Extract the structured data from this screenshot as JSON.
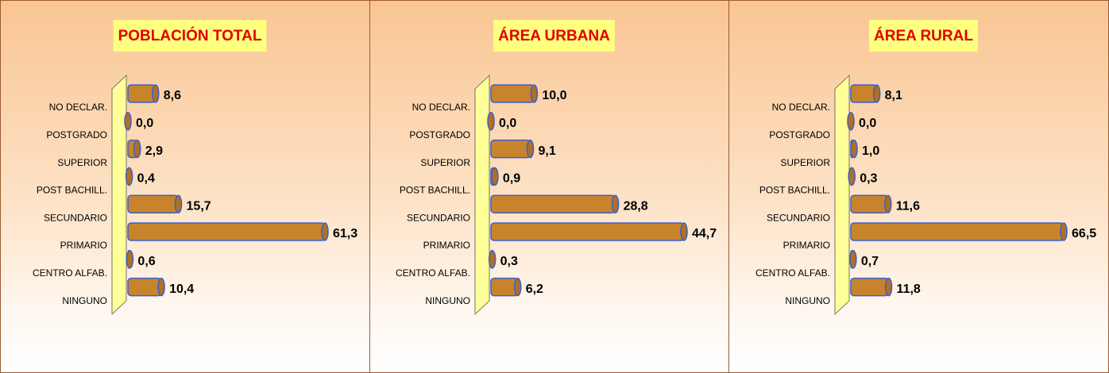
{
  "chart_data": [
    {
      "type": "bar",
      "title": "POBLACIÓN TOTAL",
      "categories": [
        "NO DECLAR.",
        "POSTGRADO",
        "SUPERIOR",
        "POST BACHILL.",
        "SECUNDARIO",
        "PRIMARIO",
        "CENTRO ALFAB.",
        "NINGUNO"
      ],
      "values": [
        8.6,
        0.0,
        2.9,
        0.4,
        15.7,
        61.3,
        0.6,
        10.4
      ],
      "value_labels": [
        "8,6",
        "0,0",
        "2,9",
        "0,4",
        "15,7",
        "61,3",
        "0,6",
        "10,4"
      ],
      "color": "#c8842c"
    },
    {
      "type": "bar",
      "title": "ÁREA URBANA",
      "categories": [
        "NO DECLAR.",
        "POSTGRADO",
        "SUPERIOR",
        "POST BACHILL.",
        "SECUNDARIO",
        "PRIMARIO",
        "CENTRO ALFAB.",
        "NINGUNO"
      ],
      "values": [
        10.0,
        0.0,
        9.1,
        0.9,
        28.8,
        44.7,
        0.3,
        6.2
      ],
      "value_labels": [
        "10,0",
        "0,0",
        "9,1",
        "0,9",
        "28,8",
        "44,7",
        "0,3",
        "6,2"
      ],
      "color": "#c8842c"
    },
    {
      "type": "bar",
      "title": "ÁREA RURAL",
      "categories": [
        "NO DECLAR.",
        "POSTGRADO",
        "SUPERIOR",
        "POST BACHILL.",
        "SECUNDARIO",
        "PRIMARIO",
        "CENTRO ALFAB.",
        "NINGUNO"
      ],
      "values": [
        8.1,
        0.0,
        1.0,
        0.3,
        11.6,
        66.5,
        0.7,
        11.8
      ],
      "value_labels": [
        "8,1",
        "0,0",
        "1,0",
        "0,3",
        "11,6",
        "66,5",
        "0,7",
        "11,8"
      ],
      "color": "#c8842c"
    }
  ]
}
